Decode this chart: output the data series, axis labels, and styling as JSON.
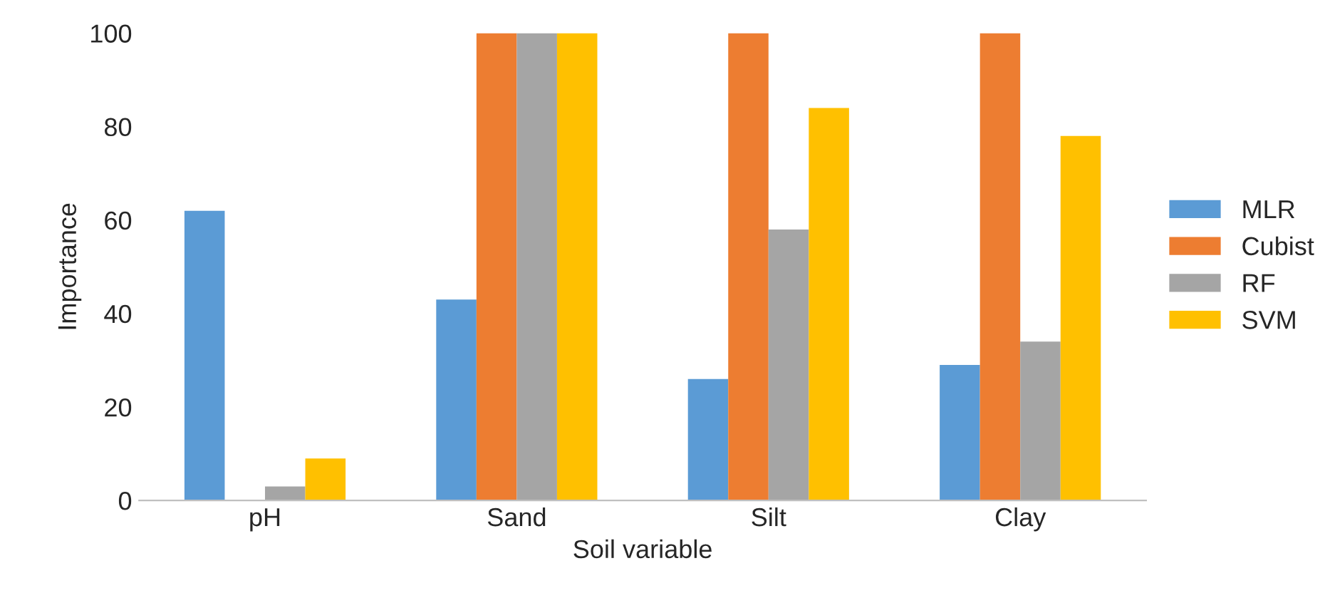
{
  "chart_data": {
    "type": "bar",
    "xlabel": "Soil variable",
    "ylabel": "Importance",
    "categories": [
      "pH",
      "Sand",
      "Silt",
      "Clay"
    ],
    "series": [
      {
        "name": "MLR",
        "color": "#5b9bd5",
        "values": [
          62,
          43,
          26,
          29
        ]
      },
      {
        "name": "Cubist",
        "color": "#ed7d31",
        "values": [
          0,
          100,
          100,
          100
        ]
      },
      {
        "name": "RF",
        "color": "#a5a5a5",
        "values": [
          3,
          100,
          58,
          34
        ]
      },
      {
        "name": "SVM",
        "color": "#ffc000",
        "values": [
          9,
          100,
          84,
          78
        ]
      }
    ],
    "ylim": [
      0,
      100
    ],
    "yticks": [
      0,
      20,
      40,
      60,
      80,
      100
    ],
    "grid": false,
    "legend": "right"
  }
}
